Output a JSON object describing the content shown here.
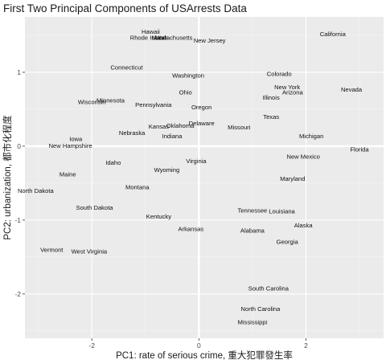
{
  "chart_data": {
    "type": "scatter",
    "title": "First Two Principal Components of USArrests Data",
    "xlabel": "PC1: rate of serious crime, 重大犯罪發生率",
    "ylabel": "PC2: urbanization, 都市化程度",
    "xlim": [
      -3.25,
      3.45
    ],
    "ylim": [
      -2.6,
      1.75
    ],
    "xticks": [
      -2,
      0,
      2
    ],
    "yticks": [
      -2,
      -1,
      0,
      1
    ],
    "grid": true,
    "zero_lines": true,
    "colors": {
      "panel": "#ebebeb",
      "grid_major": "#ffffff",
      "text": "#111111"
    },
    "points": [
      {
        "label": "Hawaii",
        "x": -0.9,
        "y": 1.55
      },
      {
        "label": "Rhode Island",
        "x": -0.95,
        "y": 1.47
      },
      {
        "label": "Utah",
        "x": -0.7,
        "y": 1.47
      },
      {
        "label": "Massachusetts",
        "x": -0.5,
        "y": 1.47
      },
      {
        "label": "New Jersey",
        "x": 0.2,
        "y": 1.43
      },
      {
        "label": "California",
        "x": 2.5,
        "y": 1.52
      },
      {
        "label": "Connecticut",
        "x": -1.35,
        "y": 1.07
      },
      {
        "label": "Washington",
        "x": -0.2,
        "y": 0.96
      },
      {
        "label": "Colorado",
        "x": 1.5,
        "y": 0.98
      },
      {
        "label": "New York",
        "x": 1.65,
        "y": 0.8
      },
      {
        "label": "Arizona",
        "x": 1.75,
        "y": 0.73
      },
      {
        "label": "Nevada",
        "x": 2.85,
        "y": 0.77
      },
      {
        "label": "Illinois",
        "x": 1.35,
        "y": 0.66
      },
      {
        "label": "Wisconsin",
        "x": -2.0,
        "y": 0.6
      },
      {
        "label": "Minnesota",
        "x": -1.65,
        "y": 0.62
      },
      {
        "label": "Ohio",
        "x": -0.25,
        "y": 0.73
      },
      {
        "label": "Pennsylvania",
        "x": -0.85,
        "y": 0.56
      },
      {
        "label": "Oregon",
        "x": 0.05,
        "y": 0.53
      },
      {
        "label": "Texas",
        "x": 1.35,
        "y": 0.4
      },
      {
        "label": "Delaware",
        "x": 0.05,
        "y": 0.31
      },
      {
        "label": "Kansas",
        "x": -0.75,
        "y": 0.27
      },
      {
        "label": "Oklahoma",
        "x": -0.35,
        "y": 0.28
      },
      {
        "label": "Missouri",
        "x": 0.75,
        "y": 0.26
      },
      {
        "label": "Nebraska",
        "x": -1.25,
        "y": 0.18
      },
      {
        "label": "Indiana",
        "x": -0.5,
        "y": 0.14
      },
      {
        "label": "Michigan",
        "x": 2.1,
        "y": 0.14
      },
      {
        "label": "Iowa",
        "x": -2.3,
        "y": 0.1
      },
      {
        "label": "New Hampshire",
        "x": -2.4,
        "y": 0.01
      },
      {
        "label": "Florida",
        "x": 3.0,
        "y": -0.04
      },
      {
        "label": "New Mexico",
        "x": 1.95,
        "y": -0.14
      },
      {
        "label": "Idaho",
        "x": -1.6,
        "y": -0.22
      },
      {
        "label": "Virginia",
        "x": -0.05,
        "y": -0.2
      },
      {
        "label": "Wyoming",
        "x": -0.6,
        "y": -0.32
      },
      {
        "label": "Maine",
        "x": -2.45,
        "y": -0.38
      },
      {
        "label": "Maryland",
        "x": 1.75,
        "y": -0.44
      },
      {
        "label": "Montana",
        "x": -1.15,
        "y": -0.55
      },
      {
        "label": "North Dakota",
        "x": -3.05,
        "y": -0.6
      },
      {
        "label": "South Dakota",
        "x": -1.95,
        "y": -0.83
      },
      {
        "label": "Tennessee",
        "x": 1.0,
        "y": -0.87
      },
      {
        "label": "Louisiana",
        "x": 1.55,
        "y": -0.88
      },
      {
        "label": "Kentucky",
        "x": -0.75,
        "y": -0.95
      },
      {
        "label": "Alaska",
        "x": 1.95,
        "y": -1.07
      },
      {
        "label": "Arkansas",
        "x": -0.15,
        "y": -1.12
      },
      {
        "label": "Alabama",
        "x": 1.0,
        "y": -1.14
      },
      {
        "label": "Georgia",
        "x": 1.65,
        "y": -1.29
      },
      {
        "label": "Vermont",
        "x": -2.75,
        "y": -1.4
      },
      {
        "label": "West Virginia",
        "x": -2.05,
        "y": -1.42
      },
      {
        "label": "South Carolina",
        "x": 1.3,
        "y": -1.92
      },
      {
        "label": "North Carolina",
        "x": 1.15,
        "y": -2.2
      },
      {
        "label": "Mississippi",
        "x": 1.0,
        "y": -2.38
      }
    ]
  }
}
